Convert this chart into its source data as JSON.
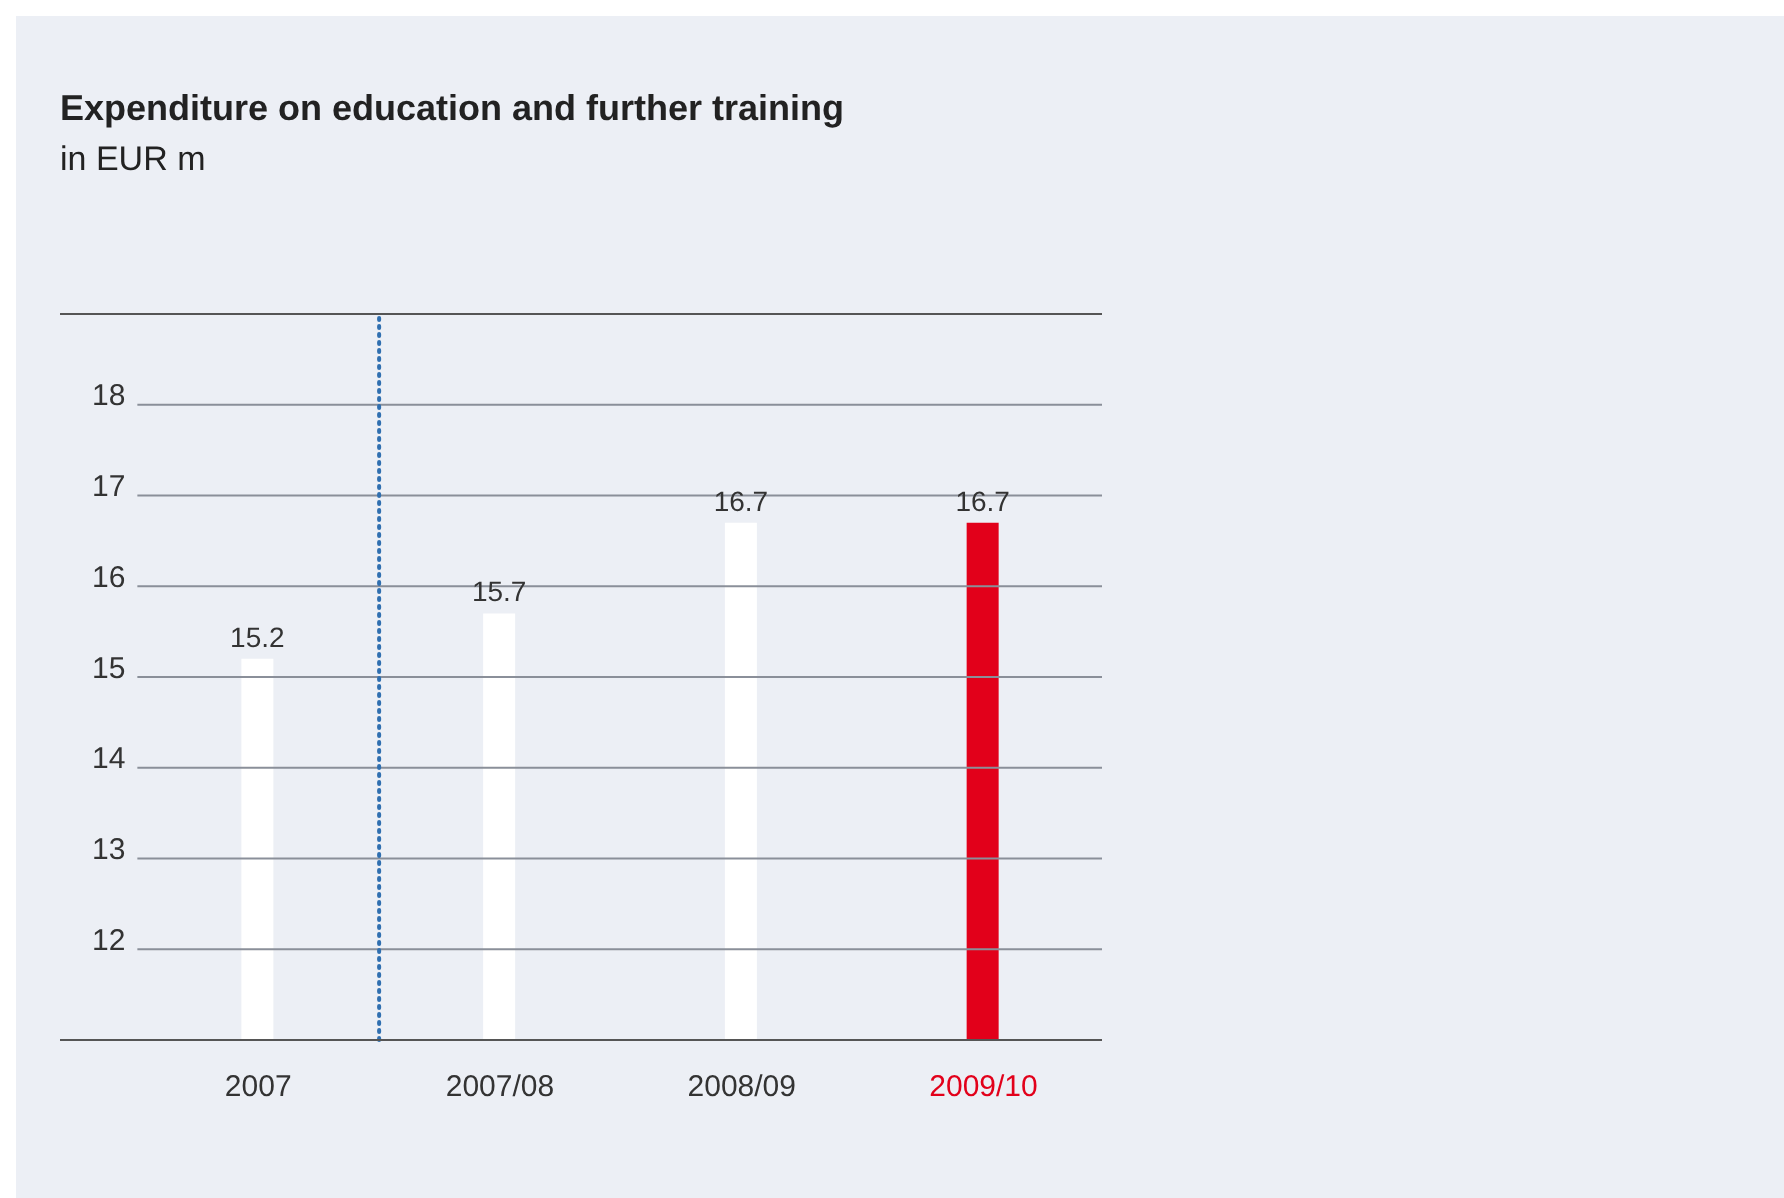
{
  "chart_data": {
    "type": "bar",
    "title": "Expenditure on education and further training",
    "subtitle": "in EUR m",
    "categories": [
      "2007",
      "2007/08",
      "2008/09",
      "2009/10"
    ],
    "values": [
      15.2,
      15.7,
      16.7,
      16.7
    ],
    "colors": [
      "#ffffff",
      "#ffffff",
      "#ffffff",
      "#e2001a"
    ],
    "data_labels": true,
    "ylim": [
      11,
      19
    ],
    "yticks": [
      {
        "value": 11,
        "label": null
      },
      12,
      13,
      14,
      15,
      16,
      17,
      18,
      {
        "value": 19,
        "label": null
      }
    ],
    "grid": "y",
    "ref_lines": [
      {
        "axis": "x",
        "value": "2007/08",
        "line_style": "dotted",
        "color": "#2f6fb0"
      }
    ]
  }
}
